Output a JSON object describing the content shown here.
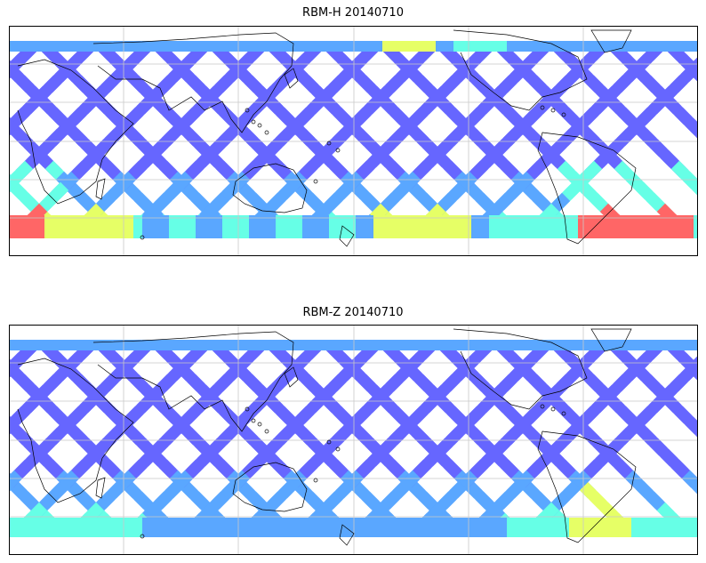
{
  "panels": [
    {
      "id": "top",
      "title": "RBM-H 20140710"
    },
    {
      "id": "bottom",
      "title": "RBM-Z 20140710"
    }
  ],
  "colors": {
    "low": "#6666ff",
    "mid_low": "#5aa7ff",
    "mid": "#66ffe6",
    "mid_high": "#e6ff66",
    "high": "#ff6666",
    "grid": "#c8c8c8",
    "coast": "#000000",
    "frame": "#000000"
  },
  "map": {
    "projection": "cylindrical",
    "coverage": "satellite swath ground tracks",
    "grid": true
  }
}
